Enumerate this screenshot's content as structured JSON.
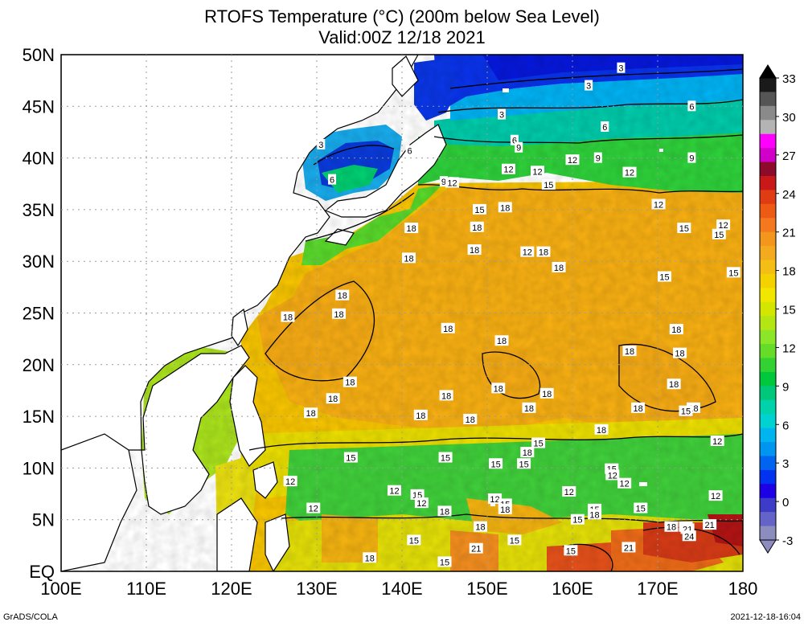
{
  "title_line1": "RTOFS Temperature (°C) (200m below Sea Level)",
  "title_line2": "Valid:00Z 12/18 2021",
  "lat_labels": [
    "50N",
    "45N",
    "40N",
    "35N",
    "30N",
    "25N",
    "20N",
    "15N",
    "10N",
    "5N",
    "EQ"
  ],
  "lon_labels": [
    "100E",
    "110E",
    "120E",
    "130E",
    "140E",
    "150E",
    "160E",
    "170E",
    "180"
  ],
  "colorbar": {
    "labels": [
      "33",
      "30",
      "27",
      "24",
      "21",
      "18",
      "15",
      "12",
      "9",
      "6",
      "3",
      "0",
      "-3"
    ],
    "colors": [
      "#1a1a1a",
      "#555555",
      "#8a8a8a",
      "#b4b4b4",
      "#ff00ff",
      "#d000c8",
      "#8c0a2a",
      "#c81818",
      "#e03c14",
      "#ec5a14",
      "#f4781e",
      "#f4961e",
      "#f4aa1e",
      "#f4be14",
      "#f4d200",
      "#f0e600",
      "#d2e600",
      "#b4e614",
      "#8ce628",
      "#64dc28",
      "#32d232",
      "#00c83c",
      "#00c87a",
      "#00d2aa",
      "#00d2d2",
      "#00b4f0",
      "#0096f0",
      "#0064f0",
      "#0032f0",
      "#1e00e6",
      "#3c3cc8",
      "#6464c8",
      "#8c8cbe"
    ],
    "under_color": "#8c8cbe",
    "over_color": "#000000"
  },
  "contour_labels": [
    {
      "text": "3",
      "lat": 48.7,
      "lon": 165.7
    },
    {
      "text": "3",
      "lat": 47.0,
      "lon": 161.9
    },
    {
      "text": "3",
      "lat": 44.2,
      "lon": 151.7
    },
    {
      "text": "6",
      "lat": 45.0,
      "lon": 174.0
    },
    {
      "text": "6",
      "lat": 43.0,
      "lon": 163.8
    },
    {
      "text": "6",
      "lat": 41.7,
      "lon": 153.2
    },
    {
      "text": "3",
      "lat": 41.3,
      "lon": 130.5
    },
    {
      "text": "6",
      "lat": 40.7,
      "lon": 140.9
    },
    {
      "text": "6",
      "lat": 37.9,
      "lon": 131.8
    },
    {
      "text": "9",
      "lat": 41.0,
      "lon": 153.7
    },
    {
      "text": "9",
      "lat": 40.0,
      "lon": 163.0
    },
    {
      "text": "9",
      "lat": 40.0,
      "lon": 174.0
    },
    {
      "text": "12",
      "lat": 39.8,
      "lon": 160.0
    },
    {
      "text": "12",
      "lat": 38.9,
      "lon": 152.5
    },
    {
      "text": "12",
      "lat": 38.7,
      "lon": 155.9
    },
    {
      "text": "12",
      "lat": 38.6,
      "lon": 166.7
    },
    {
      "text": "15",
      "lat": 37.4,
      "lon": 157.2
    },
    {
      "text": "9",
      "lat": 37.7,
      "lon": 144.9
    },
    {
      "text": "12",
      "lat": 37.6,
      "lon": 145.9
    },
    {
      "text": "12",
      "lat": 35.5,
      "lon": 170.1
    },
    {
      "text": "15",
      "lat": 35.0,
      "lon": 149.1
    },
    {
      "text": "18",
      "lat": 35.2,
      "lon": 152.1
    },
    {
      "text": "18",
      "lat": 33.2,
      "lon": 141.1
    },
    {
      "text": "18",
      "lat": 33.3,
      "lon": 148.8
    },
    {
      "text": "15",
      "lat": 33.2,
      "lon": 173.1
    },
    {
      "text": "12",
      "lat": 33.5,
      "lon": 177.7
    },
    {
      "text": "15",
      "lat": 32.6,
      "lon": 177.2
    },
    {
      "text": "18",
      "lat": 31.1,
      "lon": 148.5
    },
    {
      "text": "12",
      "lat": 30.9,
      "lon": 154.7
    },
    {
      "text": "18",
      "lat": 30.9,
      "lon": 156.6
    },
    {
      "text": "18",
      "lat": 30.3,
      "lon": 140.8
    },
    {
      "text": "18",
      "lat": 29.4,
      "lon": 158.4
    },
    {
      "text": "15",
      "lat": 28.9,
      "lon": 178.9
    },
    {
      "text": "15",
      "lat": 28.5,
      "lon": 170.8
    },
    {
      "text": "18",
      "lat": 26.7,
      "lon": 133.0
    },
    {
      "text": "18",
      "lat": 24.6,
      "lon": 126.6
    },
    {
      "text": "18",
      "lat": 24.9,
      "lon": 132.6
    },
    {
      "text": "18",
      "lat": 23.5,
      "lon": 145.4
    },
    {
      "text": "18",
      "lat": 22.3,
      "lon": 151.7
    },
    {
      "text": "18",
      "lat": 23.4,
      "lon": 172.2
    },
    {
      "text": "18",
      "lat": 21.3,
      "lon": 166.7
    },
    {
      "text": "18",
      "lat": 21.1,
      "lon": 172.6
    },
    {
      "text": "18",
      "lat": 18.3,
      "lon": 133.9
    },
    {
      "text": "18",
      "lat": 17.7,
      "lon": 151.3
    },
    {
      "text": "18",
      "lat": 18.1,
      "lon": 171.9
    },
    {
      "text": "18",
      "lat": 16.7,
      "lon": 131.9
    },
    {
      "text": "18",
      "lat": 17.0,
      "lon": 145.2
    },
    {
      "text": "18",
      "lat": 17.2,
      "lon": 157.0
    },
    {
      "text": "18",
      "lat": 15.8,
      "lon": 154.9
    },
    {
      "text": "18",
      "lat": 15.8,
      "lon": 167.7
    },
    {
      "text": "18",
      "lat": 15.8,
      "lon": 174.2
    },
    {
      "text": "18",
      "lat": 15.3,
      "lon": 129.3
    },
    {
      "text": "18",
      "lat": 15.1,
      "lon": 142.2
    },
    {
      "text": "18",
      "lat": 14.7,
      "lon": 148.0
    },
    {
      "text": "15",
      "lat": 15.5,
      "lon": 173.3
    },
    {
      "text": "18",
      "lat": 13.7,
      "lon": 163.4
    },
    {
      "text": "12",
      "lat": 12.6,
      "lon": 177.0
    },
    {
      "text": "15",
      "lat": 12.4,
      "lon": 156.0
    },
    {
      "text": "18",
      "lat": 11.5,
      "lon": 154.7
    },
    {
      "text": "15",
      "lat": 11.0,
      "lon": 134.0
    },
    {
      "text": "15",
      "lat": 11.0,
      "lon": 145.1
    },
    {
      "text": "15",
      "lat": 10.4,
      "lon": 151.0
    },
    {
      "text": "15",
      "lat": 10.4,
      "lon": 154.3
    },
    {
      "text": "15",
      "lat": 9.9,
      "lon": 164.6
    },
    {
      "text": "12",
      "lat": 9.3,
      "lon": 164.7
    },
    {
      "text": "12",
      "lat": 8.7,
      "lon": 126.9
    },
    {
      "text": "12",
      "lat": 8.5,
      "lon": 166.1
    },
    {
      "text": "12",
      "lat": 7.8,
      "lon": 139.1
    },
    {
      "text": "15",
      "lat": 7.4,
      "lon": 141.8
    },
    {
      "text": "12",
      "lat": 7.7,
      "lon": 159.6
    },
    {
      "text": "12",
      "lat": 7.3,
      "lon": 176.8
    },
    {
      "text": "12",
      "lat": 7.0,
      "lon": 150.9
    },
    {
      "text": "12",
      "lat": 6.6,
      "lon": 142.3
    },
    {
      "text": "15",
      "lat": 6.5,
      "lon": 152.1
    },
    {
      "text": "18",
      "lat": 6.0,
      "lon": 152.1
    },
    {
      "text": "12",
      "lat": 6.1,
      "lon": 129.6
    },
    {
      "text": "18",
      "lat": 5.8,
      "lon": 145.0
    },
    {
      "text": "15",
      "lat": 6.0,
      "lon": 162.6
    },
    {
      "text": "15",
      "lat": 6.1,
      "lon": 168.0
    },
    {
      "text": "18",
      "lat": 5.5,
      "lon": 162.6
    },
    {
      "text": "15",
      "lat": 5.0,
      "lon": 160.6
    },
    {
      "text": "21",
      "lat": 4.5,
      "lon": 176.1
    },
    {
      "text": "18",
      "lat": 4.3,
      "lon": 171.6
    },
    {
      "text": "18",
      "lat": 4.3,
      "lon": 173.3
    },
    {
      "text": "18",
      "lat": 4.3,
      "lon": 149.2
    },
    {
      "text": "21",
      "lat": 4.1,
      "lon": 173.5
    },
    {
      "text": "24",
      "lat": 3.4,
      "lon": 173.7
    },
    {
      "text": "15",
      "lat": 3.0,
      "lon": 141.4
    },
    {
      "text": "15",
      "lat": 3.0,
      "lon": 153.2
    },
    {
      "text": "21",
      "lat": 2.2,
      "lon": 148.7
    },
    {
      "text": "15",
      "lat": 2.0,
      "lon": 159.8
    },
    {
      "text": "21",
      "lat": 2.3,
      "lon": 166.6
    },
    {
      "text": "18",
      "lat": 1.3,
      "lon": 136.2
    },
    {
      "text": "15",
      "lat": 0.9,
      "lon": 145.0
    }
  ],
  "footer_left": "GrADS/COLA",
  "footer_right": "2021-12-18-16:04"
}
